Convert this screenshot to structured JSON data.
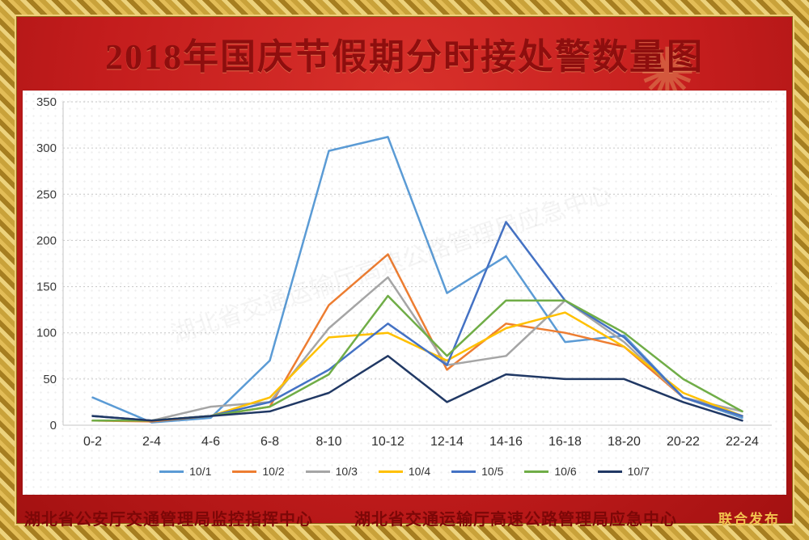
{
  "title": "2018年国庆节假期分时接处警数量图",
  "footer": {
    "left": "湖北省公安厅交通管理局监控指挥中心",
    "middle": "湖北省交通运输厅高速公路管理局应急中心",
    "right": "联合发布"
  },
  "icons": {
    "firework_glyph": "✺"
  },
  "colors": {
    "frame_gold": "#c9a23a",
    "background_red": "#c41d1d",
    "title_text": "#8e0e0e",
    "footer_text": "#7d0707",
    "footer_right_gold": "#f2c14e"
  },
  "chart_data": {
    "type": "line",
    "title": "2018年国庆节假期分时接处警数量图",
    "categories": [
      "0-2",
      "2-4",
      "4-6",
      "6-8",
      "8-10",
      "10-12",
      "12-14",
      "14-16",
      "16-18",
      "18-20",
      "20-22",
      "22-24"
    ],
    "series": [
      {
        "name": "10/1",
        "color": "#5b9bd5",
        "values": [
          30,
          3,
          8,
          70,
          297,
          312,
          143,
          183,
          90,
          97,
          30,
          8
        ]
      },
      {
        "name": "10/2",
        "color": "#ed7d31",
        "values": [
          5,
          4,
          10,
          20,
          130,
          185,
          60,
          110,
          100,
          85,
          30,
          10
        ]
      },
      {
        "name": "10/3",
        "color": "#a5a5a5",
        "values": [
          10,
          5,
          20,
          25,
          105,
          160,
          65,
          75,
          135,
          90,
          30,
          15
        ]
      },
      {
        "name": "10/4",
        "color": "#ffc000",
        "values": [
          5,
          5,
          10,
          30,
          95,
          100,
          70,
          105,
          122,
          85,
          35,
          10
        ]
      },
      {
        "name": "10/5",
        "color": "#4472c4",
        "values": [
          10,
          5,
          10,
          25,
          60,
          110,
          65,
          220,
          135,
          95,
          30,
          10
        ]
      },
      {
        "name": "10/6",
        "color": "#70ad47",
        "values": [
          5,
          5,
          10,
          20,
          55,
          140,
          75,
          135,
          135,
          100,
          50,
          15
        ]
      },
      {
        "name": "10/7",
        "color": "#203864",
        "values": [
          10,
          5,
          10,
          15,
          35,
          75,
          25,
          55,
          50,
          50,
          25,
          5
        ]
      }
    ],
    "ylim": [
      0,
      350
    ],
    "ytick_step": 50,
    "xlabel": "",
    "ylabel": "",
    "grid": "dotted-horizontal",
    "legend_position": "bottom"
  }
}
